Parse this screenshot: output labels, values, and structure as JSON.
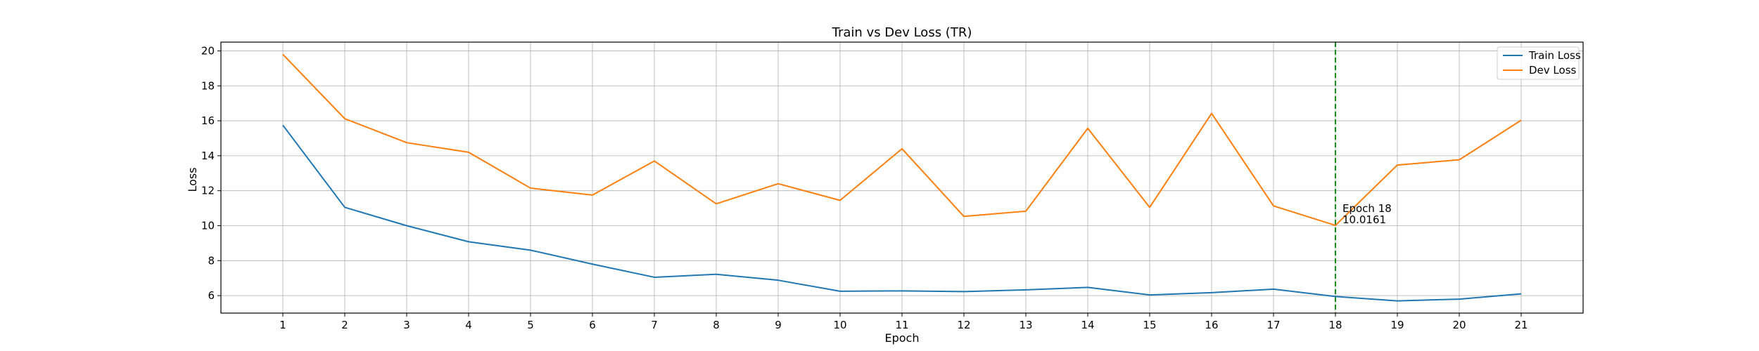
{
  "chart_data": {
    "type": "line",
    "title": "Train vs Dev Loss (TR)",
    "xlabel": "Epoch",
    "ylabel": "Loss",
    "x": [
      1,
      2,
      3,
      4,
      5,
      6,
      7,
      8,
      9,
      10,
      11,
      12,
      13,
      14,
      15,
      16,
      17,
      18,
      19,
      20,
      21
    ],
    "xlim": [
      0,
      22
    ],
    "ylim": [
      5,
      20.5
    ],
    "yticks": [
      6,
      8,
      10,
      12,
      14,
      16,
      18,
      20
    ],
    "grid": true,
    "legend_position": "top-right",
    "series": [
      {
        "name": "Train Loss",
        "color": "#1f77b4",
        "values": [
          15.75,
          11.05,
          10.0,
          9.08,
          8.6,
          7.8,
          7.05,
          7.22,
          6.88,
          6.25,
          6.27,
          6.23,
          6.33,
          6.47,
          6.04,
          6.17,
          6.37,
          5.95,
          5.7,
          5.8,
          6.1
        ]
      },
      {
        "name": "Dev Loss",
        "color": "#ff7f0e",
        "values": [
          19.8,
          16.12,
          14.75,
          14.2,
          12.15,
          11.75,
          13.7,
          11.25,
          12.4,
          11.45,
          14.4,
          10.53,
          10.83,
          15.57,
          11.05,
          16.42,
          11.13,
          10.0161,
          13.47,
          13.77,
          16.03
        ]
      }
    ],
    "annotations": [
      {
        "x": 18,
        "line_color": "#008000",
        "line_style": "dashed",
        "text_line1": "Epoch 18",
        "text_line2": "10.0161"
      }
    ]
  }
}
